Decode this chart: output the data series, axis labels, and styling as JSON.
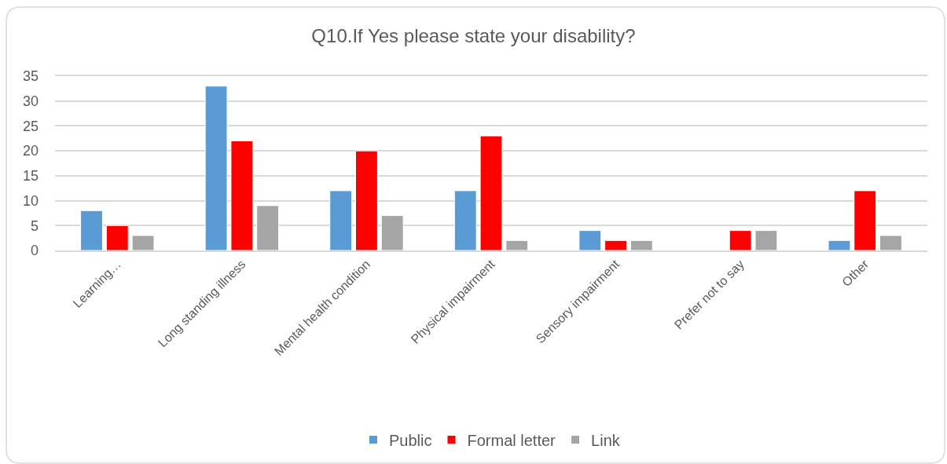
{
  "chart_data": {
    "type": "bar",
    "title": "Q10.If Yes please state your disability?",
    "categories": [
      "Learning…",
      "Long standing illness",
      "Mental health condition",
      "Physical impairment",
      "Sensory impairment",
      "Prefer not to say",
      "Other"
    ],
    "series": [
      {
        "name": "Public",
        "color": "#5b9bd5",
        "values": [
          8,
          33,
          12,
          12,
          4,
          null,
          2
        ]
      },
      {
        "name": "Formal letter",
        "color": "#ff0000",
        "values": [
          5,
          22,
          20,
          23,
          2,
          4,
          12
        ]
      },
      {
        "name": "Link",
        "color": "#a5a5a5",
        "values": [
          3,
          9,
          7,
          2,
          2,
          4,
          3
        ]
      }
    ],
    "ylim": [
      0,
      35
    ],
    "yticks": [
      0,
      5,
      10,
      15,
      20,
      25,
      30,
      35
    ],
    "grid": "y",
    "legend": "bottom"
  }
}
